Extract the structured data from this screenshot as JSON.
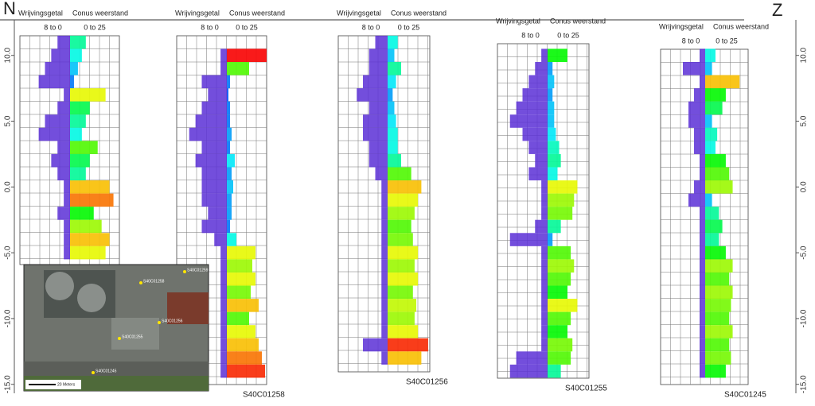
{
  "chart_data": {
    "type": "cpt",
    "north_label": "N",
    "south_label": "Z",
    "friction_title": "Wrijvingsgetal",
    "cone_title": "Conus weerstand",
    "friction_range": "8 to 0",
    "cone_range": "0 to 25",
    "friction_lim": [
      8,
      0
    ],
    "cone_lim": [
      0,
      25
    ],
    "ylim": [
      -15.5,
      12.7
    ],
    "yticks": [
      {
        "value": 10,
        "label": "10.0"
      },
      {
        "value": 5,
        "label": "5.0"
      },
      {
        "value": 0,
        "label": "0.0"
      },
      {
        "value": -5,
        "label": "-5.0"
      },
      {
        "value": -10,
        "label": "-10.0"
      },
      {
        "value": -15,
        "label": "-15.0"
      }
    ],
    "profiles": [
      {
        "elevation": [
          11,
          10,
          9,
          8,
          7,
          6,
          5,
          4,
          3,
          2,
          1,
          0,
          -1,
          -2,
          -3,
          -4,
          -5
        ],
        "cone_resistance": [
          8,
          6,
          4,
          2,
          18,
          10,
          8,
          6,
          14,
          10,
          8,
          20,
          22,
          12,
          16,
          20,
          18
        ],
        "friction_ratio": [
          2,
          3,
          4,
          5,
          1,
          2,
          4,
          5,
          2,
          3,
          2,
          1,
          1,
          2,
          1,
          1,
          1
        ]
      },
      {
        "name": "S40C01258",
        "elevation": [
          10,
          9,
          8,
          7,
          6,
          5,
          4,
          3,
          2,
          1,
          0,
          -1,
          -2,
          -3,
          -4,
          -5,
          -6,
          -7,
          -8,
          -9,
          -10,
          -11,
          -12,
          -13,
          -14
        ],
        "cone_resistance": [
          25,
          14,
          2,
          1,
          2,
          2,
          3,
          2,
          5,
          3,
          4,
          3,
          3,
          2,
          6,
          18,
          16,
          18,
          15,
          20,
          14,
          18,
          20,
          22,
          24
        ],
        "friction_ratio": [
          1,
          1,
          4,
          3,
          4,
          5,
          6,
          4,
          5,
          4,
          4,
          4,
          3,
          4,
          2,
          1,
          1,
          1,
          1,
          1,
          1,
          1,
          1,
          1,
          1
        ]
      },
      {
        "name": "S40C01256",
        "elevation": [
          11,
          10,
          9,
          8,
          7,
          6,
          5,
          4,
          3,
          2,
          1,
          0,
          -1,
          -2,
          -3,
          -4,
          -5,
          -6,
          -7,
          -8,
          -9,
          -10,
          -11,
          -12,
          -13
        ],
        "cone_resistance": [
          6,
          4,
          8,
          5,
          3,
          4,
          5,
          6,
          6,
          8,
          14,
          20,
          18,
          16,
          14,
          15,
          18,
          16,
          18,
          15,
          17,
          16,
          18,
          24,
          20
        ],
        "friction_ratio": [
          2,
          3,
          3,
          4,
          5,
          3,
          4,
          4,
          3,
          3,
          2,
          1,
          1,
          1,
          1,
          1,
          1,
          1,
          1,
          1,
          1,
          1,
          1,
          4,
          1
        ]
      },
      {
        "name": "S40C01255",
        "elevation": [
          10,
          9,
          8,
          7,
          6,
          5,
          4,
          3,
          2,
          1,
          0,
          -1,
          -2,
          -3,
          -4,
          -5,
          -6,
          -7,
          -8,
          -9,
          -10,
          -11,
          -12,
          -13,
          -14
        ],
        "cone_resistance": [
          12,
          3,
          4,
          3,
          4,
          4,
          5,
          7,
          8,
          6,
          18,
          16,
          15,
          8,
          3,
          14,
          16,
          14,
          12,
          18,
          14,
          12,
          15,
          14,
          8
        ],
        "friction_ratio": [
          1,
          2,
          3,
          4,
          5,
          6,
          4,
          3,
          2,
          3,
          1,
          1,
          1,
          2,
          6,
          1,
          1,
          1,
          1,
          1,
          1,
          1,
          1,
          5,
          6
        ]
      },
      {
        "name": "S40C01245",
        "elevation": [
          10,
          9,
          8,
          7,
          6,
          5,
          4,
          3,
          2,
          1,
          0,
          -1,
          -2,
          -3,
          -4,
          -5,
          -6,
          -7,
          -8,
          -9,
          -10,
          -11,
          -12,
          -13,
          -14
        ],
        "cone_resistance": [
          6,
          4,
          20,
          12,
          10,
          4,
          7,
          6,
          12,
          14,
          16,
          4,
          8,
          10,
          8,
          12,
          16,
          14,
          16,
          15,
          14,
          16,
          14,
          15,
          12
        ],
        "friction_ratio": [
          1,
          4,
          1,
          2,
          3,
          3,
          2,
          2,
          1,
          1,
          2,
          3,
          1,
          1,
          1,
          1,
          1,
          1,
          1,
          1,
          1,
          1,
          1,
          1,
          1
        ]
      }
    ],
    "map": {
      "points": [
        "S40C01259",
        "S40C01258",
        "S40C01256",
        "S40C01255",
        "S40C01245"
      ],
      "scale_label": "20 Meters"
    }
  }
}
